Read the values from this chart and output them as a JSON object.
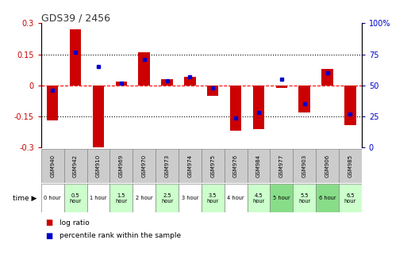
{
  "title": "GDS39 / 2456",
  "samples": [
    "GSM940",
    "GSM942",
    "GSM910",
    "GSM969",
    "GSM970",
    "GSM973",
    "GSM974",
    "GSM975",
    "GSM976",
    "GSM984",
    "GSM977",
    "GSM903",
    "GSM906",
    "GSM985"
  ],
  "time_labels": [
    "0 hour",
    "0.5\nhour",
    "1 hour",
    "1.5\nhour",
    "2 hour",
    "2.5\nhour",
    "3 hour",
    "3.5\nhour",
    "4 hour",
    "4.5\nhour",
    "5 hour",
    "5.5\nhour",
    "6 hour",
    "6.5\nhour"
  ],
  "log_ratio": [
    -0.17,
    0.27,
    -0.32,
    0.02,
    0.16,
    0.03,
    0.04,
    -0.05,
    -0.22,
    -0.21,
    -0.01,
    -0.13,
    0.08,
    -0.19
  ],
  "percentile": [
    46,
    77,
    65,
    52,
    71,
    54,
    57,
    48,
    24,
    28,
    55,
    35,
    60,
    27
  ],
  "ylim": [
    -0.3,
    0.3
  ],
  "y2lim": [
    0,
    100
  ],
  "yticks": [
    -0.3,
    -0.15,
    0,
    0.15,
    0.3
  ],
  "y2ticks": [
    0,
    25,
    50,
    75,
    100
  ],
  "bar_color": "#cc0000",
  "dot_color": "#0000cc",
  "bg_color": "#ffffff",
  "left_tick_color": "#cc0000",
  "right_tick_color": "#0000cc",
  "sample_bg": "#cccccc",
  "time_colors": [
    "#ffffff",
    "#ccffcc",
    "#ffffff",
    "#ccffcc",
    "#ffffff",
    "#ccffcc",
    "#ffffff",
    "#ccffcc",
    "#ffffff",
    "#ccffcc",
    "#88dd88",
    "#ccffcc",
    "#88dd88",
    "#ccffcc"
  ],
  "bar_width": 0.5
}
